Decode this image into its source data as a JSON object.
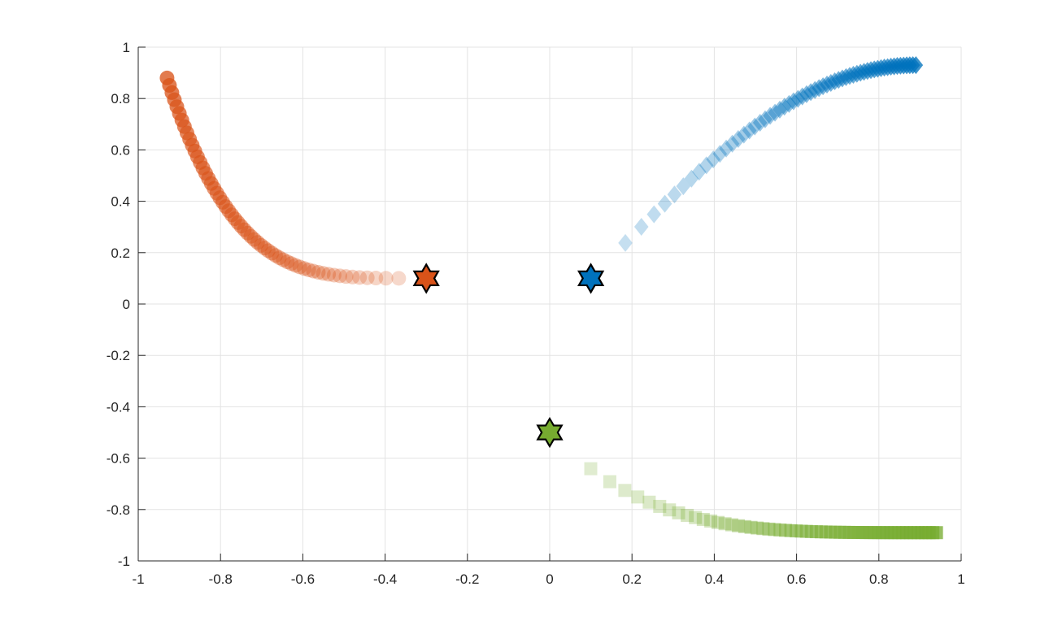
{
  "chart_data": {
    "type": "scatter",
    "title": "",
    "xlabel": "",
    "ylabel": "",
    "xlim": [
      -1,
      1
    ],
    "ylim": [
      -1,
      1
    ],
    "grid": true,
    "x_ticks": [
      "-1",
      "-0.8",
      "-0.6",
      "-0.4",
      "-0.2",
      "0",
      "0.2",
      "0.4",
      "0.6",
      "0.8",
      "1"
    ],
    "y_ticks": [
      "1",
      "0.8",
      "0.6",
      "0.4",
      "0.2",
      "0",
      "-0.2",
      "-0.4",
      "-0.6",
      "-0.8",
      "-1"
    ],
    "series": [
      {
        "marker": "circle",
        "color": "#D95319",
        "start": [
          -0.3,
          0.1
        ],
        "end": [
          -0.93,
          0.88
        ]
      },
      {
        "marker": "diamond",
        "color": "#0072BD",
        "start": [
          0.1,
          0.1
        ],
        "end": [
          0.89,
          0.93
        ]
      },
      {
        "marker": "square",
        "color": "#77AC30",
        "start": [
          0.0,
          -0.5
        ],
        "end": [
          0.94,
          -0.89
        ]
      }
    ],
    "start_marker": "hexagram"
  }
}
